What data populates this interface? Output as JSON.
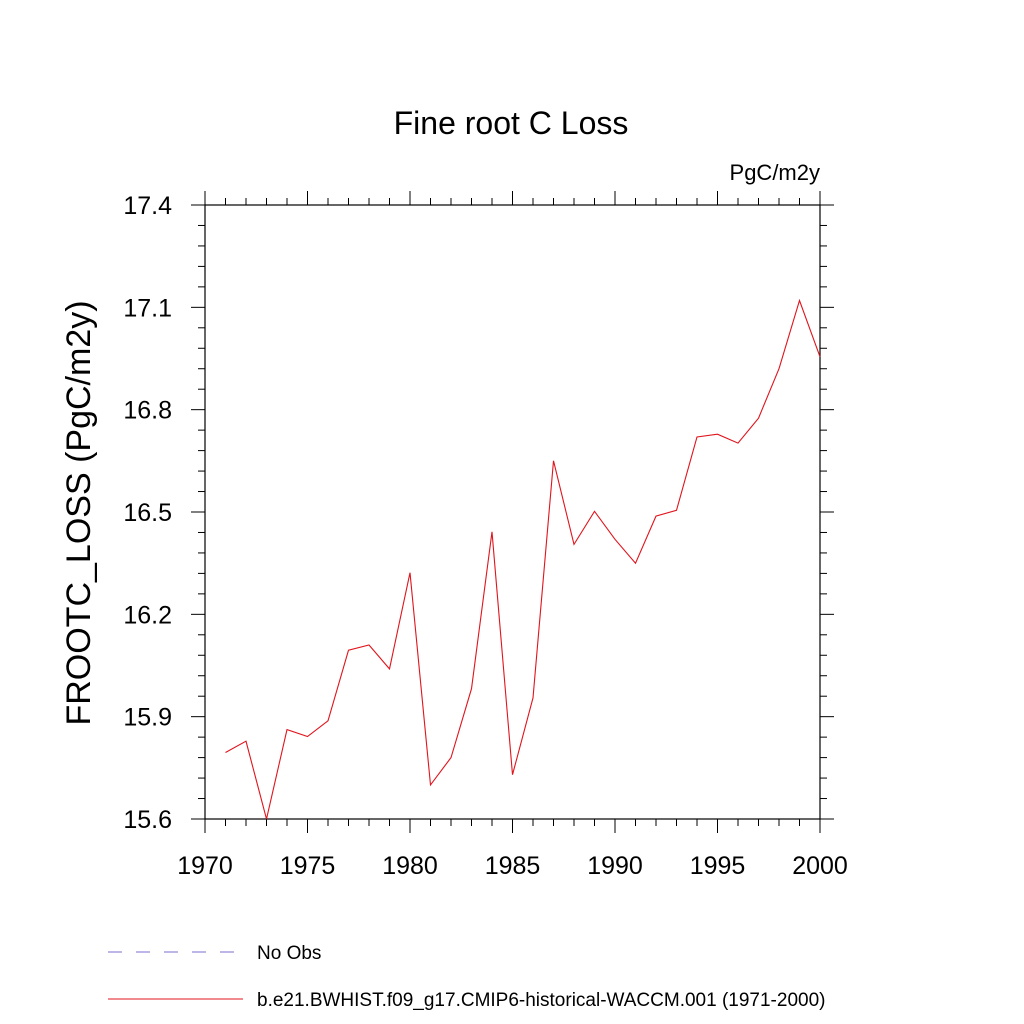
{
  "chart_data": {
    "type": "line",
    "title": "Fine root C Loss",
    "units_label": "PgC/m2y",
    "ylabel": "FROOTC_LOSS  (PgC/m2y)",
    "xlabel": "",
    "xlim": [
      1970,
      2000
    ],
    "ylim": [
      15.6,
      17.4
    ],
    "x_ticks": [
      1970,
      1975,
      1980,
      1985,
      1990,
      1995,
      2000
    ],
    "x_tick_labels": [
      "1970",
      "1975",
      "1980",
      "1985",
      "1990",
      "1995",
      "2000"
    ],
    "y_ticks": [
      15.6,
      15.9,
      16.2,
      16.5,
      16.8,
      17.1,
      17.4
    ],
    "y_tick_labels": [
      "15.6",
      "15.9",
      "16.2",
      "16.5",
      "16.8",
      "17.1",
      "17.4"
    ],
    "grid": false,
    "legend_position": "bottom",
    "series": [
      {
        "name": "No Obs",
        "color": "#7b6fd0",
        "style": "dashed",
        "x": [],
        "values": []
      },
      {
        "name": "b.e21.BWHIST.f09_g17.CMIP6-historical-WACCM.001 (1971-2000)",
        "color": "#e0141c",
        "style": "solid",
        "x": [
          1971,
          1972,
          1973,
          1974,
          1975,
          1976,
          1977,
          1978,
          1979,
          1980,
          1981,
          1982,
          1983,
          1984,
          1985,
          1986,
          1987,
          1988,
          1989,
          1990,
          1991,
          1992,
          1993,
          1994,
          1995,
          1996,
          1997,
          1998,
          1999,
          2000
        ],
        "values": [
          15.795,
          15.828,
          15.6,
          15.862,
          15.842,
          15.888,
          16.095,
          16.11,
          16.04,
          16.322,
          15.7,
          15.78,
          15.982,
          16.442,
          15.73,
          15.955,
          16.65,
          16.405,
          16.502,
          16.42,
          16.35,
          16.488,
          16.505,
          16.72,
          16.728,
          16.702,
          16.775,
          16.92,
          17.12,
          16.955
        ]
      }
    ]
  }
}
